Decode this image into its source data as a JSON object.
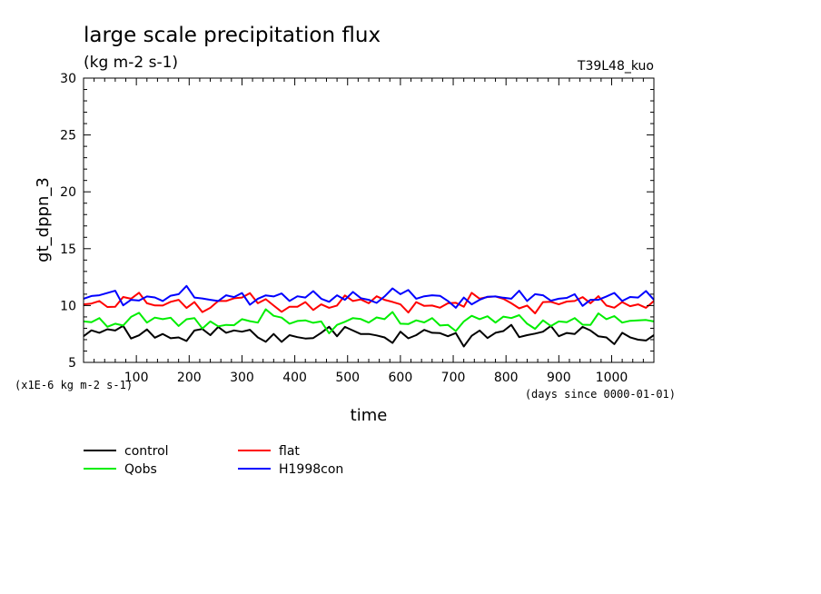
{
  "chart_data": {
    "type": "line",
    "title": "large scale precipitation flux",
    "subtitle": "(kg m-2 s-1)",
    "run_label": "T39L48_kuo",
    "xlabel": "time",
    "ylabel": "gt_dppn_3",
    "y_scale_note": "(x1E-6 kg m-2 s-1)",
    "x_unit_note": "(days since 0000-01-01)",
    "xlim": [
      0,
      1080
    ],
    "ylim": [
      5,
      30
    ],
    "x_ticks": [
      100,
      200,
      300,
      400,
      500,
      600,
      700,
      800,
      900,
      1000
    ],
    "x_tick_labels": [
      "100",
      "200",
      "300",
      "400",
      "500",
      "600",
      "700",
      "800",
      "900",
      "1000"
    ],
    "y_ticks": [
      5,
      10,
      15,
      20,
      25,
      30
    ],
    "y_tick_labels": [
      "5",
      "10",
      "15",
      "20",
      "25",
      "30"
    ],
    "legend_position": "below-left",
    "series": [
      {
        "name": "control",
        "color": "#000000",
        "x": [
          0,
          30,
          60,
          90,
          120,
          150,
          180,
          210,
          240,
          270,
          300,
          330,
          360,
          390,
          420,
          450,
          480,
          510,
          540,
          570,
          600,
          630,
          660,
          690,
          720,
          750,
          780,
          810,
          840,
          870,
          900,
          930,
          960,
          990,
          1020,
          1050,
          1080
        ],
        "y": [
          7.3,
          7.6,
          7.8,
          7.1,
          7.9,
          7.5,
          7.2,
          7.8,
          7.4,
          7.6,
          7.7,
          7.2,
          7.5,
          7.4,
          7.1,
          7.6,
          7.3,
          7.8,
          7.5,
          7.2,
          7.7,
          7.4,
          7.6,
          7.3,
          6.4,
          7.8,
          7.6,
          8.3,
          7.4,
          7.7,
          7.3,
          7.5,
          7.8,
          7.2,
          7.6,
          7.0,
          7.4
        ]
      },
      {
        "name": "flat",
        "color": "#ff0000",
        "x": [
          0,
          30,
          60,
          90,
          120,
          150,
          180,
          210,
          240,
          270,
          300,
          330,
          360,
          390,
          420,
          450,
          480,
          510,
          540,
          570,
          600,
          630,
          660,
          690,
          720,
          750,
          780,
          810,
          840,
          870,
          900,
          930,
          960,
          990,
          1020,
          1050,
          1080
        ],
        "y": [
          10.1,
          10.4,
          9.9,
          10.6,
          10.2,
          10.0,
          10.5,
          10.3,
          9.8,
          10.4,
          10.7,
          10.2,
          10.0,
          9.9,
          10.3,
          10.1,
          10.0,
          10.4,
          10.2,
          10.5,
          10.1,
          10.3,
          10.0,
          10.2,
          9.9,
          10.6,
          10.8,
          10.2,
          10.0,
          10.3,
          10.1,
          10.4,
          10.2,
          10.0,
          10.3,
          10.1,
          10.4
        ]
      },
      {
        "name": "Qobs",
        "color": "#00ee00",
        "x": [
          0,
          30,
          60,
          90,
          120,
          150,
          180,
          210,
          240,
          270,
          300,
          330,
          360,
          390,
          420,
          450,
          480,
          510,
          540,
          570,
          600,
          630,
          660,
          690,
          720,
          750,
          780,
          810,
          840,
          870,
          900,
          930,
          960,
          990,
          1020,
          1050,
          1080
        ],
        "y": [
          8.6,
          8.9,
          8.4,
          9.0,
          8.5,
          8.8,
          8.2,
          8.9,
          8.6,
          8.3,
          8.8,
          8.5,
          9.1,
          8.4,
          8.7,
          8.6,
          8.3,
          8.9,
          8.5,
          8.8,
          8.4,
          8.7,
          8.9,
          8.3,
          8.6,
          8.8,
          8.5,
          8.9,
          8.4,
          8.7,
          8.6,
          8.9,
          8.3,
          8.8,
          8.5,
          8.7,
          8.6
        ]
      },
      {
        "name": "H1998con",
        "color": "#0000ff",
        "x": [
          0,
          30,
          60,
          90,
          120,
          150,
          180,
          210,
          240,
          270,
          300,
          330,
          360,
          390,
          420,
          450,
          480,
          510,
          540,
          570,
          600,
          630,
          660,
          690,
          720,
          750,
          780,
          810,
          840,
          870,
          900,
          930,
          960,
          990,
          1020,
          1050,
          1080
        ],
        "y": [
          10.6,
          10.9,
          11.3,
          10.5,
          10.8,
          10.4,
          11.0,
          10.7,
          10.5,
          10.9,
          11.1,
          10.6,
          10.8,
          10.4,
          10.7,
          10.6,
          10.9,
          11.2,
          10.5,
          10.8,
          11.0,
          10.6,
          10.9,
          10.4,
          10.7,
          10.5,
          10.8,
          10.6,
          10.4,
          10.9,
          10.6,
          11.0,
          10.5,
          10.8,
          10.4,
          10.7,
          10.5
        ]
      }
    ]
  }
}
